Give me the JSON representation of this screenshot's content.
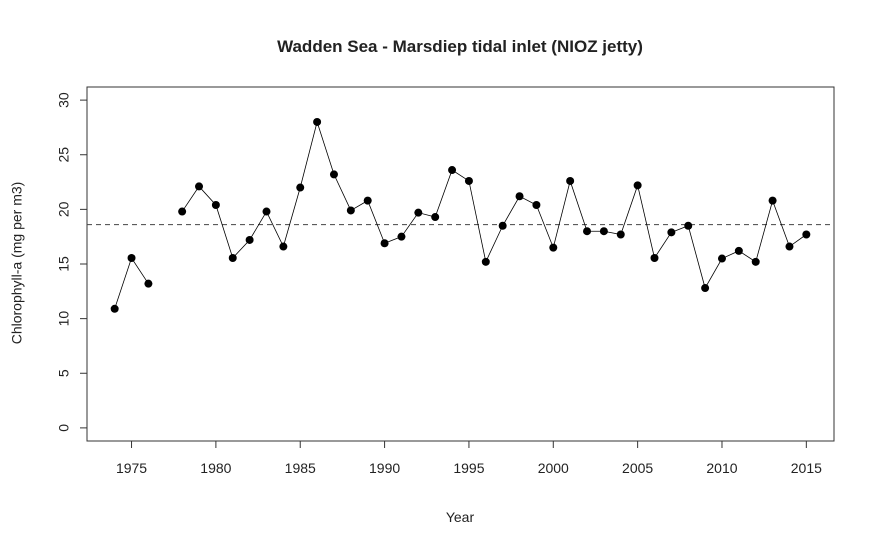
{
  "chart_data": {
    "type": "line",
    "title": "Wadden Sea - Marsdiep tidal inlet (NIOZ jetty)",
    "x_label": "Year",
    "y_label": "Chlorophyll-a (mg per m3)",
    "x": [
      1974,
      1975,
      1976,
      1977,
      1978,
      1979,
      1980,
      1981,
      1982,
      1983,
      1984,
      1985,
      1986,
      1987,
      1988,
      1989,
      1990,
      1991,
      1992,
      1993,
      1994,
      1995,
      1996,
      1997,
      1998,
      1999,
      2000,
      2001,
      2002,
      2003,
      2004,
      2005,
      2006,
      2007,
      2008,
      2009,
      2010,
      2011,
      2012,
      2013,
      2014,
      2015
    ],
    "series": [
      {
        "color": "#000000",
        "values": [
          10.9,
          15.55,
          13.2,
          null,
          19.8,
          22.1,
          20.4,
          15.55,
          17.2,
          19.8,
          16.6,
          22.0,
          28.0,
          23.2,
          19.9,
          20.8,
          16.9,
          17.5,
          19.7,
          19.3,
          23.6,
          22.6,
          15.2,
          18.5,
          21.2,
          20.4,
          16.5,
          22.6,
          18.0,
          18.0,
          17.7,
          22.2,
          15.55,
          17.9,
          18.5,
          12.8,
          15.5,
          16.2,
          15.2,
          20.8,
          16.6,
          17.7
        ]
      }
    ],
    "reference_line": 18.6,
    "xlim": [
      1972.36,
      2016.64
    ],
    "ylim": [
      -1.2,
      31.2
    ],
    "xticks": [
      1975,
      1980,
      1985,
      1990,
      1995,
      2000,
      2005,
      2010,
      2015
    ],
    "yticks": [
      0,
      5,
      10,
      15,
      20,
      25,
      30
    ]
  }
}
